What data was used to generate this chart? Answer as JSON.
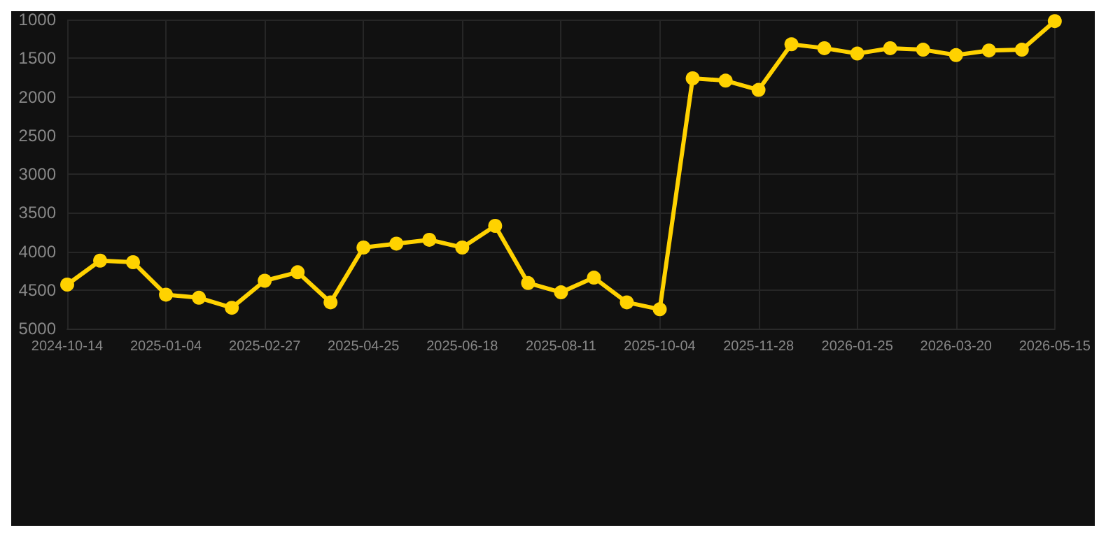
{
  "chart_data": {
    "type": "line",
    "categories": [
      "2024-10-14",
      null,
      null,
      "2025-01-04",
      null,
      null,
      "2025-02-27",
      null,
      null,
      "2025-04-25",
      null,
      null,
      "2025-06-18",
      null,
      null,
      "2025-08-11",
      null,
      null,
      "2025-10-04",
      null,
      null,
      "2025-11-28",
      null,
      null,
      "2026-01-25",
      null,
      null,
      "2026-03-20",
      null,
      null,
      "2026-05-15"
    ],
    "series": [
      {
        "color": "#ffd200",
        "values": [
          4430,
          4120,
          4140,
          4560,
          4600,
          4730,
          4380,
          4270,
          4660,
          3950,
          3900,
          3850,
          3950,
          3670,
          4410,
          4530,
          4340,
          4660,
          4750,
          1760,
          1790,
          1910,
          1320,
          1370,
          1440,
          1370,
          1390,
          1460,
          1400,
          1390,
          1020
        ]
      }
    ],
    "ylim": [
      5000,
      1000
    ],
    "yticks": [
      1000,
      1500,
      2000,
      2500,
      3000,
      3500,
      4000,
      4500,
      5000
    ],
    "grid": true,
    "marker": "circle",
    "line_style": "solid"
  }
}
